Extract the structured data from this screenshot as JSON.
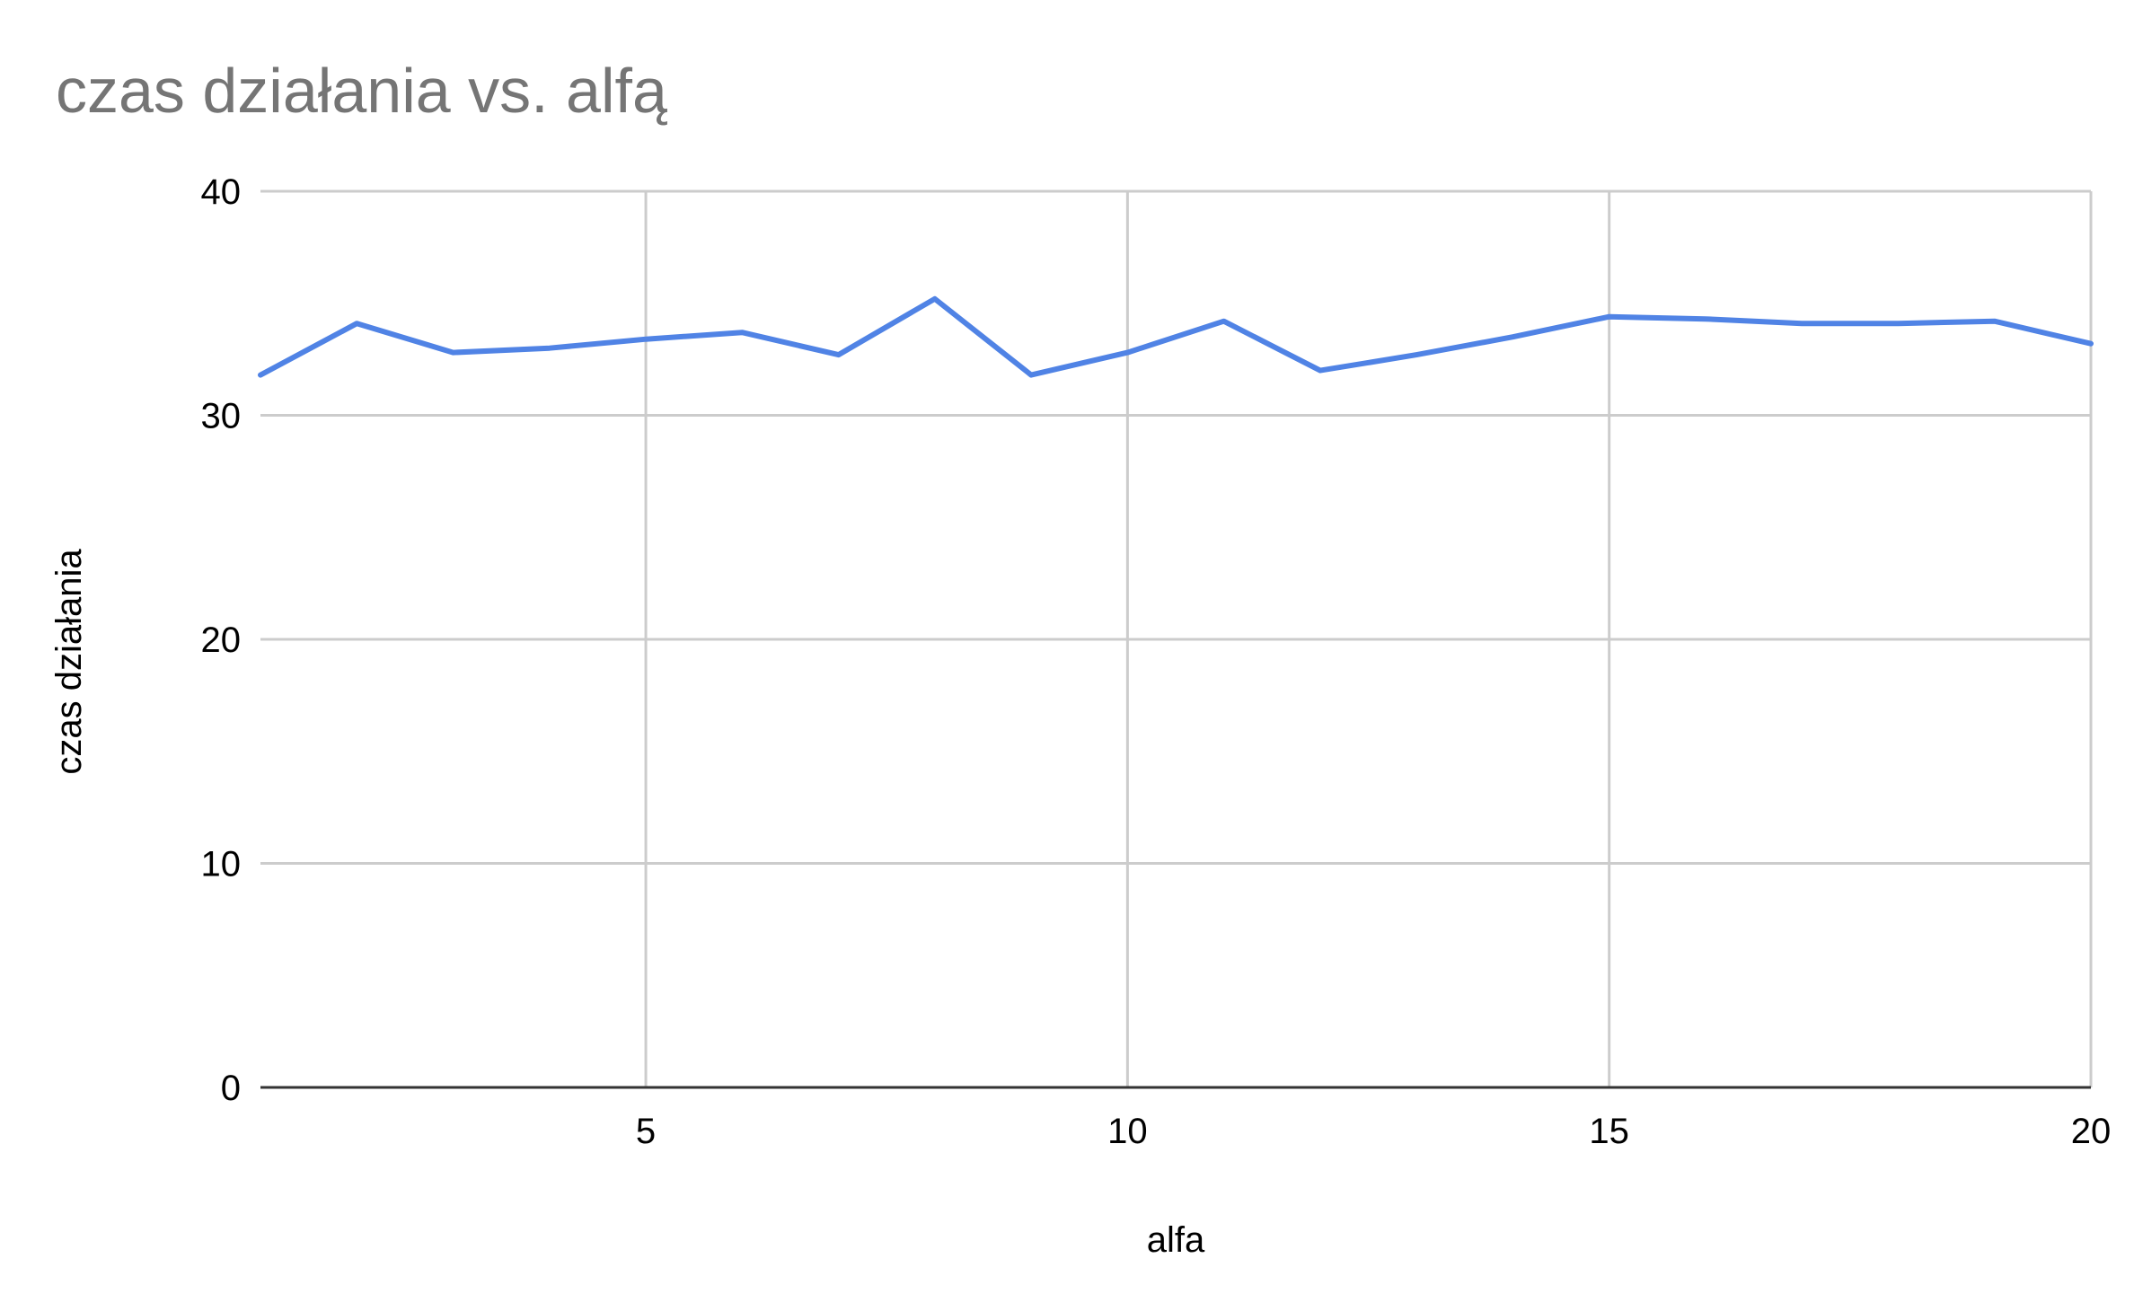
{
  "chart_data": {
    "type": "line",
    "title": "czas działania vs. alfą",
    "xlabel": "alfa",
    "ylabel": "czas działania",
    "x": [
      1,
      2,
      3,
      4,
      5,
      6,
      7,
      8,
      9,
      10,
      11,
      12,
      13,
      14,
      15,
      16,
      17,
      18,
      19,
      20
    ],
    "series": [
      {
        "values": [
          31.8,
          34.1,
          32.8,
          33.0,
          33.4,
          33.7,
          32.7,
          35.2,
          31.8,
          32.8,
          34.2,
          32.0,
          32.7,
          33.5,
          34.4,
          34.3,
          34.1,
          34.1,
          34.2,
          33.2
        ]
      }
    ],
    "xlim": [
      1,
      20
    ],
    "ylim": [
      0,
      40
    ],
    "xticks": [
      5,
      10,
      15,
      20
    ],
    "yticks": [
      0,
      10,
      20,
      30,
      40
    ],
    "xtick_labels": [
      "5",
      "10",
      "15",
      "20"
    ],
    "ytick_labels": [
      "0",
      "10",
      "20",
      "30",
      "40"
    ],
    "grid": true,
    "legend": "none",
    "colors": {
      "series": "#5083e5",
      "grid": "#cccccc",
      "axis": "#333333",
      "title": "#757575"
    }
  }
}
